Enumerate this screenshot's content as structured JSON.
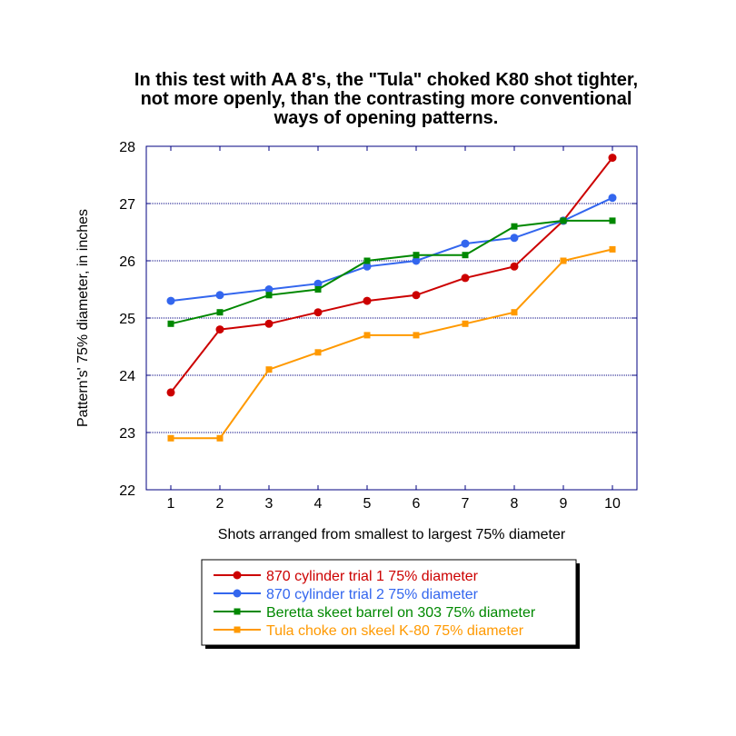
{
  "chart_data": {
    "type": "line",
    "title": [
      "In this test with AA  8's,  the \"Tula\" choked K80 shot tighter,",
      "not more openly, than the contrasting more conventional",
      "ways of opening patterns."
    ],
    "xlabel": "Shots arranged from smallest to largest 75% diameter",
    "ylabel": "Pattern's' 75% diameter, in inches",
    "x": [
      1,
      2,
      3,
      4,
      5,
      6,
      7,
      8,
      9,
      10
    ],
    "x_ticks": [
      "1",
      "2",
      "3",
      "4",
      "5",
      "6",
      "7",
      "8",
      "9",
      "10"
    ],
    "xlim": [
      0.5,
      10.5
    ],
    "ylim": [
      22,
      28
    ],
    "y_ticks": [
      "22",
      "23",
      "24",
      "25",
      "26",
      "27",
      "28"
    ],
    "grid": "horizontal dotted",
    "legend_position": "bottom-center",
    "series": [
      {
        "name": "870 cylinder trial 1 75% diameter",
        "color": "#cc0000",
        "marker": "circle",
        "values": [
          23.7,
          24.8,
          24.9,
          25.1,
          25.3,
          25.4,
          25.7,
          25.9,
          26.7,
          27.8
        ]
      },
      {
        "name": "870 cylinder trial 2 75% diameter",
        "color": "#3366ee",
        "marker": "circle",
        "values": [
          25.3,
          25.4,
          25.5,
          25.6,
          25.9,
          26.0,
          26.3,
          26.4,
          26.7,
          27.1
        ]
      },
      {
        "name": "Beretta skeet barrel on 303 75% diameter",
        "color": "#008800",
        "marker": "square",
        "values": [
          24.9,
          25.1,
          25.4,
          25.5,
          26.0,
          26.1,
          26.1,
          26.6,
          26.7,
          26.7
        ]
      },
      {
        "name": "Tula choke on skeel K-80 75% diameter",
        "color": "#ff9900",
        "marker": "square",
        "values": [
          22.9,
          22.9,
          24.1,
          24.4,
          24.7,
          24.7,
          24.9,
          25.1,
          26.0,
          26.2
        ]
      }
    ]
  }
}
